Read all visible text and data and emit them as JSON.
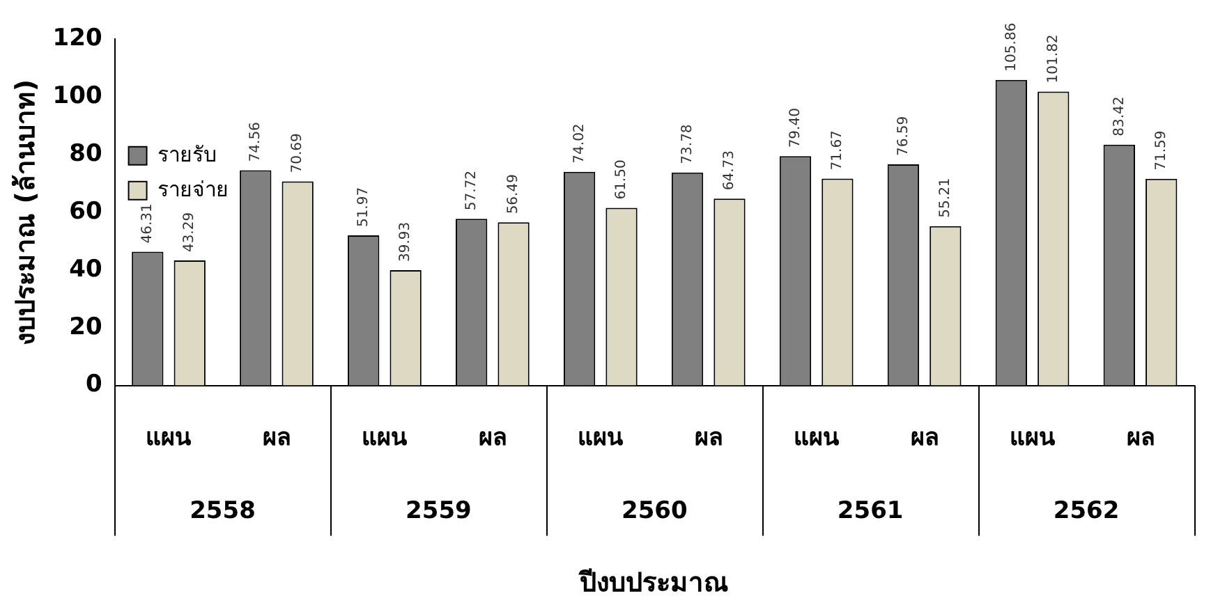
{
  "chart_data": {
    "type": "bar",
    "xlabel": "ปีงบประมาณ",
    "ylabel": "งบประมาณ (ล้านบาท)",
    "categories": [
      "แผน",
      "ผล",
      "แผน",
      "ผล",
      "แผน",
      "ผล",
      "แผน",
      "ผล",
      "แผน",
      "ผล"
    ],
    "annotations": [
      "2558",
      "2559",
      "2560",
      "2561",
      "2562"
    ],
    "series": [
      {
        "name": "รายรับ",
        "color": "#808080",
        "values": [
          46.31,
          74.56,
          51.97,
          57.72,
          74.02,
          73.78,
          79.4,
          76.59,
          105.86,
          83.42
        ],
        "value_labels": [
          "46.31",
          "74.56",
          "51.97",
          "57.72",
          "74.02",
          "73.78",
          "79.40",
          "76.59",
          "105.86",
          "83.42"
        ]
      },
      {
        "name": "รายจ่าย",
        "color": "#ddd9c3",
        "values": [
          43.29,
          70.69,
          39.93,
          56.49,
          61.5,
          64.73,
          71.67,
          55.21,
          101.82,
          71.59
        ],
        "value_labels": [
          "43.29",
          "70.69",
          "39.93",
          "56.49",
          "61.50",
          "64.73",
          "71.67",
          "55.21",
          "101.82",
          "71.59"
        ]
      }
    ],
    "ylim": [
      0,
      120
    ],
    "yticks": [
      0,
      20,
      40,
      60,
      80,
      100,
      120
    ],
    "grid": false,
    "legend": "top"
  }
}
